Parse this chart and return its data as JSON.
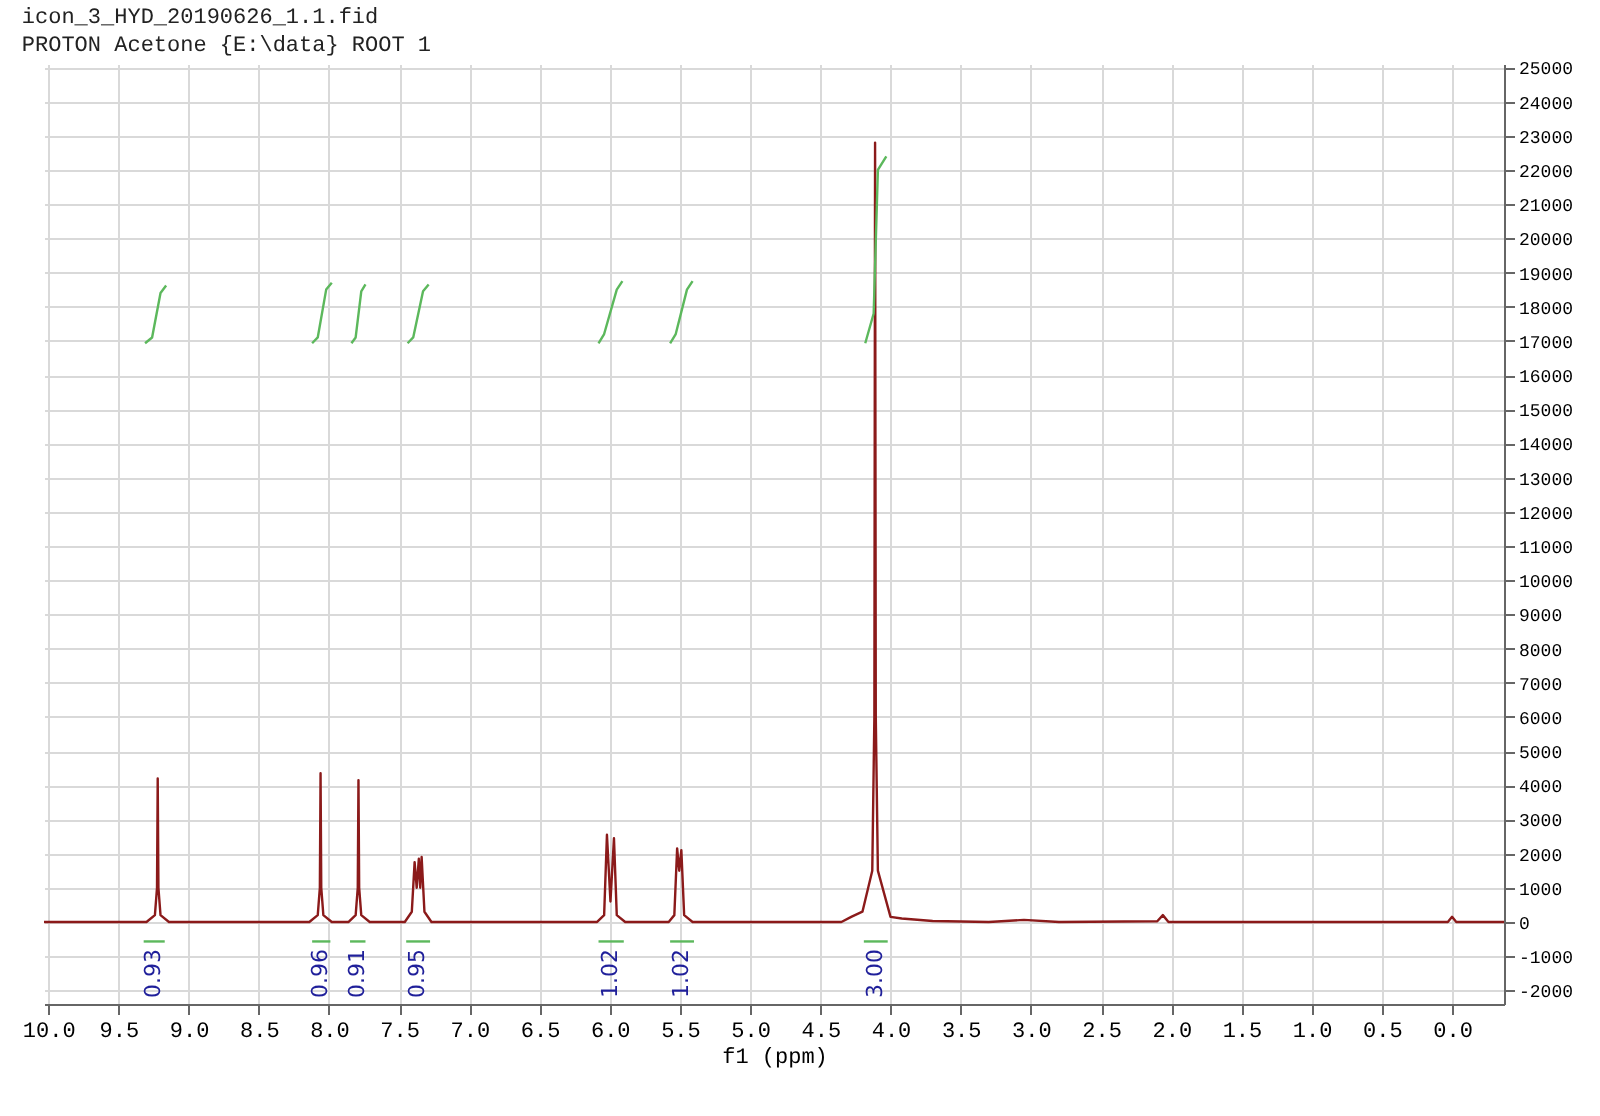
{
  "chart_data": {
    "type": "line",
    "title": "icon_3_HYD_20190626_1.1.fid",
    "subtitle": "PROTON Acetone {E:\\data} ROOT 1",
    "xlabel": "f1 (ppm)",
    "xlim": [
      10.03,
      -0.37
    ],
    "xticks": [
      {
        "value": 10,
        "label": "10.0"
      },
      9.5,
      {
        "value": 9,
        "label": "9.0"
      },
      8.5,
      {
        "value": 8,
        "label": "8.0"
      },
      7.5,
      {
        "value": 7,
        "label": "7.0"
      },
      6.5,
      {
        "value": 6,
        "label": "6.0"
      },
      5.5,
      {
        "value": 5,
        "label": "5.0"
      },
      4.5,
      {
        "value": 4,
        "label": "4.0"
      },
      3.5,
      {
        "value": 3,
        "label": "3.0"
      },
      2.5,
      {
        "value": 2,
        "label": "2.0"
      },
      1.5,
      {
        "value": 1,
        "label": "1.0"
      },
      0.5,
      {
        "value": 0,
        "label": "0.0"
      }
    ],
    "ylim": [
      -2400,
      25100
    ],
    "yticks": [
      -2000,
      -1000,
      0,
      1000,
      2000,
      3000,
      4000,
      5000,
      6000,
      7000,
      8000,
      9000,
      10000,
      11000,
      12000,
      13000,
      14000,
      15000,
      16000,
      17000,
      18000,
      19000,
      20000,
      21000,
      22000,
      23000,
      24000,
      25000
    ],
    "grid": true,
    "legend": false,
    "marker": "none",
    "line_style": "solid",
    "series": [
      {
        "type": "line",
        "color": "#8b1a1a",
        "x": [
          10.03,
          9.3,
          9.24,
          9.225,
          9.22,
          9.215,
          9.2,
          9.14,
          8.14,
          8.08,
          8.065,
          8.06,
          8.055,
          8.04,
          7.98,
          7.86,
          7.81,
          7.795,
          7.79,
          7.785,
          7.77,
          7.71,
          7.46,
          7.41,
          7.39,
          7.375,
          7.36,
          7.35,
          7.34,
          7.32,
          7.27,
          6.09,
          6.04,
          6.02,
          5.995,
          5.97,
          5.95,
          5.89,
          5.58,
          5.54,
          5.52,
          5.505,
          5.49,
          5.47,
          5.41,
          4.35,
          4.28,
          4.2,
          4.13,
          4.115,
          4.11,
          4.105,
          4.09,
          4.0,
          3.92,
          3.7,
          3.3,
          3.05,
          2.8,
          2.1,
          2.06,
          2.02,
          1.0,
          0.03,
          0.0,
          -0.03,
          -0.37
        ],
        "values": [
          0,
          0,
          200,
          1000,
          4200,
          1000,
          200,
          0,
          0,
          200,
          1000,
          4350,
          1000,
          200,
          0,
          0,
          200,
          1000,
          4150,
          1000,
          200,
          0,
          0,
          300,
          1750,
          1000,
          1850,
          1000,
          1900,
          300,
          0,
          0,
          200,
          2550,
          600,
          2450,
          200,
          0,
          0,
          200,
          2150,
          1500,
          2100,
          200,
          0,
          0,
          150,
          300,
          1500,
          6000,
          22800,
          6000,
          1500,
          150,
          100,
          30,
          0,
          60,
          0,
          20,
          200,
          0,
          0,
          0,
          150,
          0,
          0
        ]
      },
      {
        "type": "line",
        "color": "#5cb85c",
        "x": [
          9.31,
          9.26,
          9.2,
          9.16
        ],
        "values": [
          16930,
          17100,
          18400,
          18620
        ]
      },
      {
        "type": "line",
        "color": "#5cb85c",
        "x": [
          8.12,
          8.08,
          8.02,
          7.98
        ],
        "values": [
          16930,
          17100,
          18500,
          18700
        ]
      },
      {
        "type": "line",
        "color": "#5cb85c",
        "x": [
          7.84,
          7.81,
          7.77,
          7.74
        ],
        "values": [
          16930,
          17100,
          18450,
          18650
        ]
      },
      {
        "type": "line",
        "color": "#5cb85c",
        "x": [
          7.44,
          7.4,
          7.33,
          7.29
        ],
        "values": [
          16930,
          17100,
          18450,
          18650
        ]
      },
      {
        "type": "line",
        "color": "#5cb85c",
        "x": [
          6.08,
          6.04,
          5.95,
          5.91
        ],
        "values": [
          16930,
          17200,
          18500,
          18750
        ]
      },
      {
        "type": "line",
        "color": "#5cb85c",
        "x": [
          5.57,
          5.53,
          5.45,
          5.41
        ],
        "values": [
          16930,
          17200,
          18500,
          18750
        ]
      },
      {
        "type": "line",
        "color": "#5cb85c",
        "x": [
          4.18,
          4.12,
          4.09,
          4.03
        ],
        "values": [
          16930,
          17800,
          22000,
          22400
        ]
      },
      {
        "type": "line",
        "color": "#5cb85c",
        "x": [
          9.32,
          9.17
        ],
        "values": [
          -570,
          -570
        ]
      },
      {
        "type": "line",
        "color": "#5cb85c",
        "x": [
          8.12,
          7.99
        ],
        "values": [
          -570,
          -570
        ]
      },
      {
        "type": "line",
        "color": "#5cb85c",
        "x": [
          7.85,
          7.74
        ],
        "values": [
          -570,
          -570
        ]
      },
      {
        "type": "line",
        "color": "#5cb85c",
        "x": [
          7.45,
          7.28
        ],
        "values": [
          -570,
          -570
        ]
      },
      {
        "type": "line",
        "color": "#5cb85c",
        "x": [
          6.08,
          5.9
        ],
        "values": [
          -570,
          -570
        ]
      },
      {
        "type": "line",
        "color": "#5cb85c",
        "x": [
          5.57,
          5.4
        ],
        "values": [
          -570,
          -570
        ]
      },
      {
        "type": "line",
        "color": "#5cb85c",
        "x": [
          4.19,
          4.02
        ],
        "values": [
          -570,
          -570
        ]
      }
    ],
    "annotations": [
      {
        "text": "0.93",
        "x": 9.245,
        "y": -570
      },
      {
        "text": "0.96",
        "x": 8.055,
        "y": -570
      },
      {
        "text": "0.91",
        "x": 7.795,
        "y": -570
      },
      {
        "text": "0.95",
        "x": 7.365,
        "y": -570
      },
      {
        "text": "1.02",
        "x": 5.99,
        "y": -570
      },
      {
        "text": "1.02",
        "x": 5.485,
        "y": -570
      },
      {
        "text": "3.00",
        "x": 4.105,
        "y": -570
      }
    ]
  }
}
